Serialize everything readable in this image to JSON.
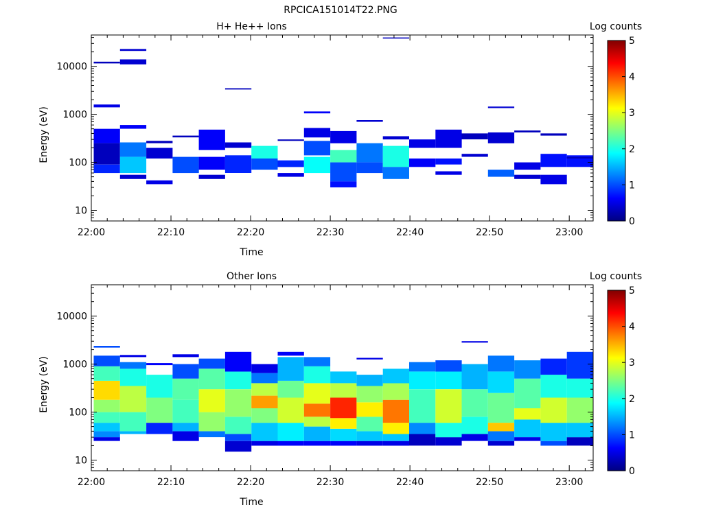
{
  "figure_title": "RPCICA151014T22.PNG",
  "colormap": [
    "#000080",
    "#0000ff",
    "#0080ff",
    "#00ffff",
    "#80ff80",
    "#ffff00",
    "#ff8000",
    "#ff0000",
    "#800000"
  ],
  "chart_data": [
    {
      "type": "heatmap",
      "title": "H+ He++ Ions",
      "xlabel": "Time",
      "ylabel": "Energy (eV)",
      "x_ticks": [
        "22:00",
        "22:10",
        "22:20",
        "22:30",
        "22:40",
        "22:50",
        "23:00"
      ],
      "y_ticks": [
        "10",
        "100",
        "1000",
        "10000"
      ],
      "y_scale": "log",
      "ylim": [
        6,
        45000
      ],
      "xlim_minutes": [
        0,
        63
      ],
      "colorbar": {
        "label": "Log counts",
        "range": [
          0,
          5
        ],
        "ticks": [
          "0",
          "1",
          "2",
          "3",
          "4",
          "5"
        ]
      },
      "time_bins_minutes": [
        0.3,
        3.6,
        6.9,
        10.2,
        13.5,
        16.8,
        20.1,
        23.4,
        26.7,
        30.0,
        33.3,
        36.6,
        39.9,
        43.2,
        46.5,
        49.8,
        53.1,
        56.4,
        59.7,
        63.0
      ],
      "cells": [
        [
          0,
          250,
          500,
          0.6
        ],
        [
          0,
          90,
          250,
          0.3
        ],
        [
          0,
          60,
          90,
          0.8
        ],
        [
          0,
          1400,
          1600,
          0.5
        ],
        [
          0,
          11500,
          12500,
          0.3
        ],
        [
          1,
          130,
          260,
          1.2
        ],
        [
          1,
          60,
          130,
          1.6
        ],
        [
          1,
          500,
          600,
          0.6
        ],
        [
          1,
          21000,
          23000,
          0.4
        ],
        [
          1,
          11000,
          14000,
          0.4
        ],
        [
          1,
          45,
          55,
          0.4
        ],
        [
          2,
          120,
          200,
          0.4
        ],
        [
          2,
          35,
          42,
          0.5
        ],
        [
          2,
          250,
          280,
          0.3
        ],
        [
          3,
          60,
          130,
          1.0
        ],
        [
          3,
          330,
          360,
          0.3
        ],
        [
          4,
          70,
          130,
          0.6
        ],
        [
          4,
          180,
          480,
          0.6
        ],
        [
          4,
          45,
          55,
          0.4
        ],
        [
          5,
          60,
          140,
          0.8
        ],
        [
          5,
          3300,
          3500,
          0.3
        ],
        [
          5,
          200,
          260,
          0.4
        ],
        [
          6,
          120,
          220,
          2.0
        ],
        [
          6,
          70,
          120,
          1.0
        ],
        [
          7,
          50,
          60,
          0.5
        ],
        [
          7,
          80,
          110,
          0.8
        ],
        [
          7,
          280,
          300,
          0.3
        ],
        [
          8,
          60,
          130,
          1.9
        ],
        [
          8,
          140,
          280,
          1.0
        ],
        [
          8,
          1050,
          1150,
          0.6
        ],
        [
          8,
          330,
          520,
          0.5
        ],
        [
          9,
          100,
          180,
          2.2
        ],
        [
          9,
          40,
          100,
          1.0
        ],
        [
          9,
          30,
          40,
          0.7
        ],
        [
          9,
          250,
          450,
          0.5
        ],
        [
          10,
          100,
          250,
          1.2
        ],
        [
          10,
          700,
          760,
          0.4
        ],
        [
          10,
          60,
          100,
          1.0
        ],
        [
          11,
          80,
          220,
          2.0
        ],
        [
          11,
          45,
          80,
          1.2
        ],
        [
          11,
          38000,
          40000,
          0.3
        ],
        [
          11,
          300,
          350,
          0.4
        ],
        [
          12,
          80,
          120,
          0.6
        ],
        [
          12,
          200,
          300,
          0.5
        ],
        [
          13,
          90,
          120,
          0.7
        ],
        [
          13,
          55,
          65,
          0.5
        ],
        [
          13,
          200,
          480,
          0.5
        ],
        [
          14,
          130,
          150,
          0.4
        ],
        [
          14,
          300,
          400,
          0.3
        ],
        [
          15,
          50,
          70,
          1.1
        ],
        [
          15,
          250,
          420,
          0.4
        ],
        [
          15,
          1350,
          1450,
          0.4
        ],
        [
          16,
          70,
          100,
          0.5
        ],
        [
          16,
          45,
          55,
          0.4
        ],
        [
          16,
          420,
          460,
          0.3
        ],
        [
          17,
          80,
          150,
          0.7
        ],
        [
          17,
          35,
          55,
          0.5
        ],
        [
          17,
          360,
          400,
          0.3
        ],
        [
          18,
          80,
          140,
          0.7
        ],
        [
          18,
          120,
          130,
          0.3
        ]
      ]
    },
    {
      "type": "heatmap",
      "title": "Other Ions",
      "xlabel": "Time",
      "ylabel": "Energy (eV)",
      "x_ticks": [
        "22:00",
        "22:10",
        "22:20",
        "22:30",
        "22:40",
        "22:50",
        "23:00"
      ],
      "y_ticks": [
        "10",
        "100",
        "1000",
        "10000"
      ],
      "y_scale": "log",
      "ylim": [
        6,
        45000
      ],
      "xlim_minutes": [
        0,
        63
      ],
      "colorbar": {
        "label": "Log counts",
        "range": [
          0,
          5
        ],
        "ticks": [
          "0",
          "1",
          "2",
          "3",
          "4",
          "5"
        ]
      },
      "time_bins_minutes": [
        0.3,
        3.6,
        6.9,
        10.2,
        13.5,
        16.8,
        20.1,
        23.4,
        26.7,
        30.0,
        33.3,
        36.6,
        39.9,
        43.2,
        46.5,
        49.8,
        53.1,
        56.4,
        59.7,
        63.0
      ],
      "cells": [
        [
          0,
          25,
          30,
          0.5
        ],
        [
          0,
          30,
          40,
          1.3
        ],
        [
          0,
          40,
          60,
          1.6
        ],
        [
          0,
          60,
          100,
          2.2
        ],
        [
          0,
          100,
          180,
          2.6
        ],
        [
          0,
          180,
          450,
          3.3
        ],
        [
          0,
          450,
          900,
          2.2
        ],
        [
          0,
          900,
          1500,
          1.0
        ],
        [
          0,
          2200,
          2400,
          1.0
        ],
        [
          1,
          35,
          40,
          1.5
        ],
        [
          1,
          40,
          100,
          2.2
        ],
        [
          1,
          100,
          350,
          2.8
        ],
        [
          1,
          350,
          800,
          2.0
        ],
        [
          1,
          800,
          1100,
          1.2
        ],
        [
          1,
          1400,
          1550,
          0.5
        ],
        [
          2,
          35,
          60,
          0.8
        ],
        [
          2,
          60,
          200,
          2.5
        ],
        [
          2,
          200,
          600,
          2.0
        ],
        [
          2,
          950,
          1050,
          0.6
        ],
        [
          3,
          25,
          40,
          0.5
        ],
        [
          3,
          40,
          60,
          1.5
        ],
        [
          3,
          60,
          180,
          2.2
        ],
        [
          3,
          180,
          500,
          2.3
        ],
        [
          3,
          500,
          1000,
          1.0
        ],
        [
          3,
          1400,
          1600,
          0.5
        ],
        [
          4,
          30,
          40,
          1.2
        ],
        [
          4,
          40,
          100,
          2.6
        ],
        [
          4,
          100,
          300,
          3.0
        ],
        [
          4,
          300,
          800,
          2.3
        ],
        [
          4,
          800,
          1300,
          1.0
        ],
        [
          5,
          15,
          25,
          0.4
        ],
        [
          5,
          25,
          35,
          1.0
        ],
        [
          5,
          35,
          80,
          2.2
        ],
        [
          5,
          80,
          300,
          2.6
        ],
        [
          5,
          300,
          700,
          2.0
        ],
        [
          5,
          700,
          1800,
          0.6
        ],
        [
          6,
          20,
          25,
          0.5
        ],
        [
          6,
          25,
          60,
          1.6
        ],
        [
          6,
          60,
          120,
          2.5
        ],
        [
          6,
          120,
          220,
          3.6
        ],
        [
          6,
          220,
          400,
          2.8
        ],
        [
          6,
          400,
          650,
          1.2
        ],
        [
          6,
          650,
          1000,
          0.5
        ],
        [
          7,
          20,
          25,
          0.6
        ],
        [
          7,
          25,
          60,
          1.8
        ],
        [
          7,
          60,
          200,
          2.9
        ],
        [
          7,
          200,
          450,
          2.4
        ],
        [
          7,
          450,
          1400,
          1.5
        ],
        [
          7,
          1500,
          1800,
          0.6
        ],
        [
          8,
          20,
          25,
          0.6
        ],
        [
          8,
          25,
          50,
          1.5
        ],
        [
          8,
          50,
          80,
          2.8
        ],
        [
          8,
          80,
          150,
          3.8
        ],
        [
          8,
          150,
          400,
          3.0
        ],
        [
          8,
          400,
          900,
          2.0
        ],
        [
          8,
          900,
          1400,
          1.2
        ],
        [
          9,
          20,
          25,
          0.6
        ],
        [
          9,
          25,
          45,
          1.7
        ],
        [
          9,
          45,
          75,
          3.2
        ],
        [
          9,
          75,
          200,
          4.2
        ],
        [
          9,
          200,
          400,
          2.8
        ],
        [
          9,
          400,
          700,
          1.6
        ],
        [
          10,
          20,
          25,
          0.5
        ],
        [
          10,
          25,
          40,
          1.6
        ],
        [
          10,
          40,
          80,
          2.3
        ],
        [
          10,
          80,
          160,
          3.2
        ],
        [
          10,
          160,
          350,
          2.6
        ],
        [
          10,
          350,
          600,
          1.5
        ],
        [
          10,
          1250,
          1350,
          0.5
        ],
        [
          11,
          20,
          25,
          0.5
        ],
        [
          11,
          25,
          35,
          1.6
        ],
        [
          11,
          35,
          60,
          3.2
        ],
        [
          11,
          60,
          180,
          3.8
        ],
        [
          11,
          180,
          400,
          2.7
        ],
        [
          11,
          400,
          800,
          1.6
        ],
        [
          12,
          20,
          35,
          0.3
        ],
        [
          12,
          35,
          60,
          1.3
        ],
        [
          12,
          60,
          300,
          2.2
        ],
        [
          12,
          300,
          700,
          1.8
        ],
        [
          12,
          700,
          1100,
          1.2
        ],
        [
          13,
          20,
          30,
          0.4
        ],
        [
          13,
          30,
          60,
          2.0
        ],
        [
          13,
          60,
          300,
          2.9
        ],
        [
          13,
          300,
          700,
          1.8
        ],
        [
          13,
          700,
          1200,
          1.0
        ],
        [
          14,
          25,
          35,
          0.5
        ],
        [
          14,
          35,
          80,
          2.0
        ],
        [
          14,
          80,
          300,
          2.3
        ],
        [
          14,
          300,
          1000,
          1.5
        ],
        [
          14,
          2800,
          3000,
          0.5
        ],
        [
          15,
          20,
          25,
          0.4
        ],
        [
          15,
          25,
          40,
          1.2
        ],
        [
          15,
          40,
          60,
          3.4
        ],
        [
          15,
          60,
          250,
          2.4
        ],
        [
          15,
          250,
          700,
          1.7
        ],
        [
          15,
          700,
          1500,
          1.2
        ],
        [
          16,
          25,
          30,
          0.5
        ],
        [
          16,
          30,
          70,
          1.6
        ],
        [
          16,
          70,
          120,
          3.0
        ],
        [
          16,
          120,
          500,
          2.3
        ],
        [
          16,
          500,
          1200,
          1.3
        ],
        [
          17,
          20,
          25,
          1.0
        ],
        [
          17,
          25,
          60,
          1.6
        ],
        [
          17,
          60,
          200,
          2.9
        ],
        [
          17,
          200,
          600,
          2.0
        ],
        [
          17,
          600,
          1300,
          0.8
        ],
        [
          18,
          20,
          30,
          0.3
        ],
        [
          18,
          30,
          60,
          1.6
        ],
        [
          18,
          60,
          200,
          2.6
        ],
        [
          18,
          200,
          500,
          2.0
        ],
        [
          18,
          500,
          1800,
          0.9
        ]
      ]
    }
  ]
}
